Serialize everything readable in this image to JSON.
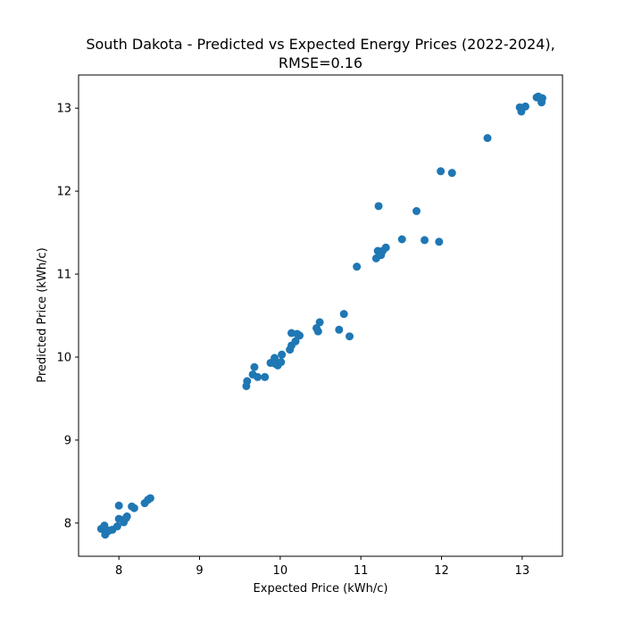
{
  "chart_data": {
    "type": "scatter",
    "title_line1": "South Dakota - Predicted vs Expected Energy Prices (2022-2024),",
    "title_line2": "RMSE=0.16",
    "xlabel": "Expected Price (kWh/c)",
    "ylabel": "Predicted Price (kWh/c)",
    "xlim": [
      7.5,
      13.5
    ],
    "ylim": [
      7.6,
      13.4
    ],
    "xticks": [
      8,
      9,
      10,
      11,
      12,
      13
    ],
    "yticks": [
      8,
      9,
      10,
      11,
      12,
      13
    ],
    "grid": false,
    "marker_color": "#1f77b4",
    "points": [
      {
        "x": 7.78,
        "y": 7.93
      },
      {
        "x": 7.82,
        "y": 7.97
      },
      {
        "x": 7.83,
        "y": 7.86
      },
      {
        "x": 7.86,
        "y": 7.9
      },
      {
        "x": 7.88,
        "y": 7.91
      },
      {
        "x": 7.92,
        "y": 7.92
      },
      {
        "x": 7.98,
        "y": 7.96
      },
      {
        "x": 8.0,
        "y": 8.05
      },
      {
        "x": 8.0,
        "y": 8.21
      },
      {
        "x": 8.05,
        "y": 8.04
      },
      {
        "x": 8.06,
        "y": 8.01
      },
      {
        "x": 8.09,
        "y": 8.06
      },
      {
        "x": 8.1,
        "y": 8.08
      },
      {
        "x": 8.16,
        "y": 8.2
      },
      {
        "x": 8.19,
        "y": 8.18
      },
      {
        "x": 8.32,
        "y": 8.24
      },
      {
        "x": 8.36,
        "y": 8.28
      },
      {
        "x": 8.39,
        "y": 8.3
      },
      {
        "x": 9.58,
        "y": 9.65
      },
      {
        "x": 9.59,
        "y": 9.71
      },
      {
        "x": 9.66,
        "y": 9.79
      },
      {
        "x": 9.68,
        "y": 9.88
      },
      {
        "x": 9.72,
        "y": 9.76
      },
      {
        "x": 9.81,
        "y": 9.76
      },
      {
        "x": 9.88,
        "y": 9.93
      },
      {
        "x": 9.93,
        "y": 9.99
      },
      {
        "x": 9.94,
        "y": 9.92
      },
      {
        "x": 9.97,
        "y": 9.9
      },
      {
        "x": 10.01,
        "y": 9.94
      },
      {
        "x": 10.02,
        "y": 10.03
      },
      {
        "x": 10.12,
        "y": 10.09
      },
      {
        "x": 10.14,
        "y": 10.14
      },
      {
        "x": 10.14,
        "y": 10.29
      },
      {
        "x": 10.19,
        "y": 10.19
      },
      {
        "x": 10.21,
        "y": 10.28
      },
      {
        "x": 10.24,
        "y": 10.26
      },
      {
        "x": 10.45,
        "y": 10.35
      },
      {
        "x": 10.47,
        "y": 10.31
      },
      {
        "x": 10.49,
        "y": 10.42
      },
      {
        "x": 10.73,
        "y": 10.33
      },
      {
        "x": 10.79,
        "y": 10.52
      },
      {
        "x": 10.86,
        "y": 10.25
      },
      {
        "x": 10.95,
        "y": 11.09
      },
      {
        "x": 11.19,
        "y": 11.19
      },
      {
        "x": 11.21,
        "y": 11.28
      },
      {
        "x": 11.22,
        "y": 11.82
      },
      {
        "x": 11.25,
        "y": 11.23
      },
      {
        "x": 11.27,
        "y": 11.28
      },
      {
        "x": 11.31,
        "y": 11.32
      },
      {
        "x": 11.51,
        "y": 11.42
      },
      {
        "x": 11.69,
        "y": 11.76
      },
      {
        "x": 11.79,
        "y": 11.41
      },
      {
        "x": 11.97,
        "y": 11.39
      },
      {
        "x": 11.99,
        "y": 12.24
      },
      {
        "x": 12.13,
        "y": 12.22
      },
      {
        "x": 12.57,
        "y": 12.64
      },
      {
        "x": 12.97,
        "y": 13.01
      },
      {
        "x": 12.99,
        "y": 12.96
      },
      {
        "x": 13.04,
        "y": 13.02
      },
      {
        "x": 13.18,
        "y": 13.13
      },
      {
        "x": 13.2,
        "y": 13.14
      },
      {
        "x": 13.24,
        "y": 13.07
      },
      {
        "x": 13.25,
        "y": 13.12
      }
    ]
  }
}
